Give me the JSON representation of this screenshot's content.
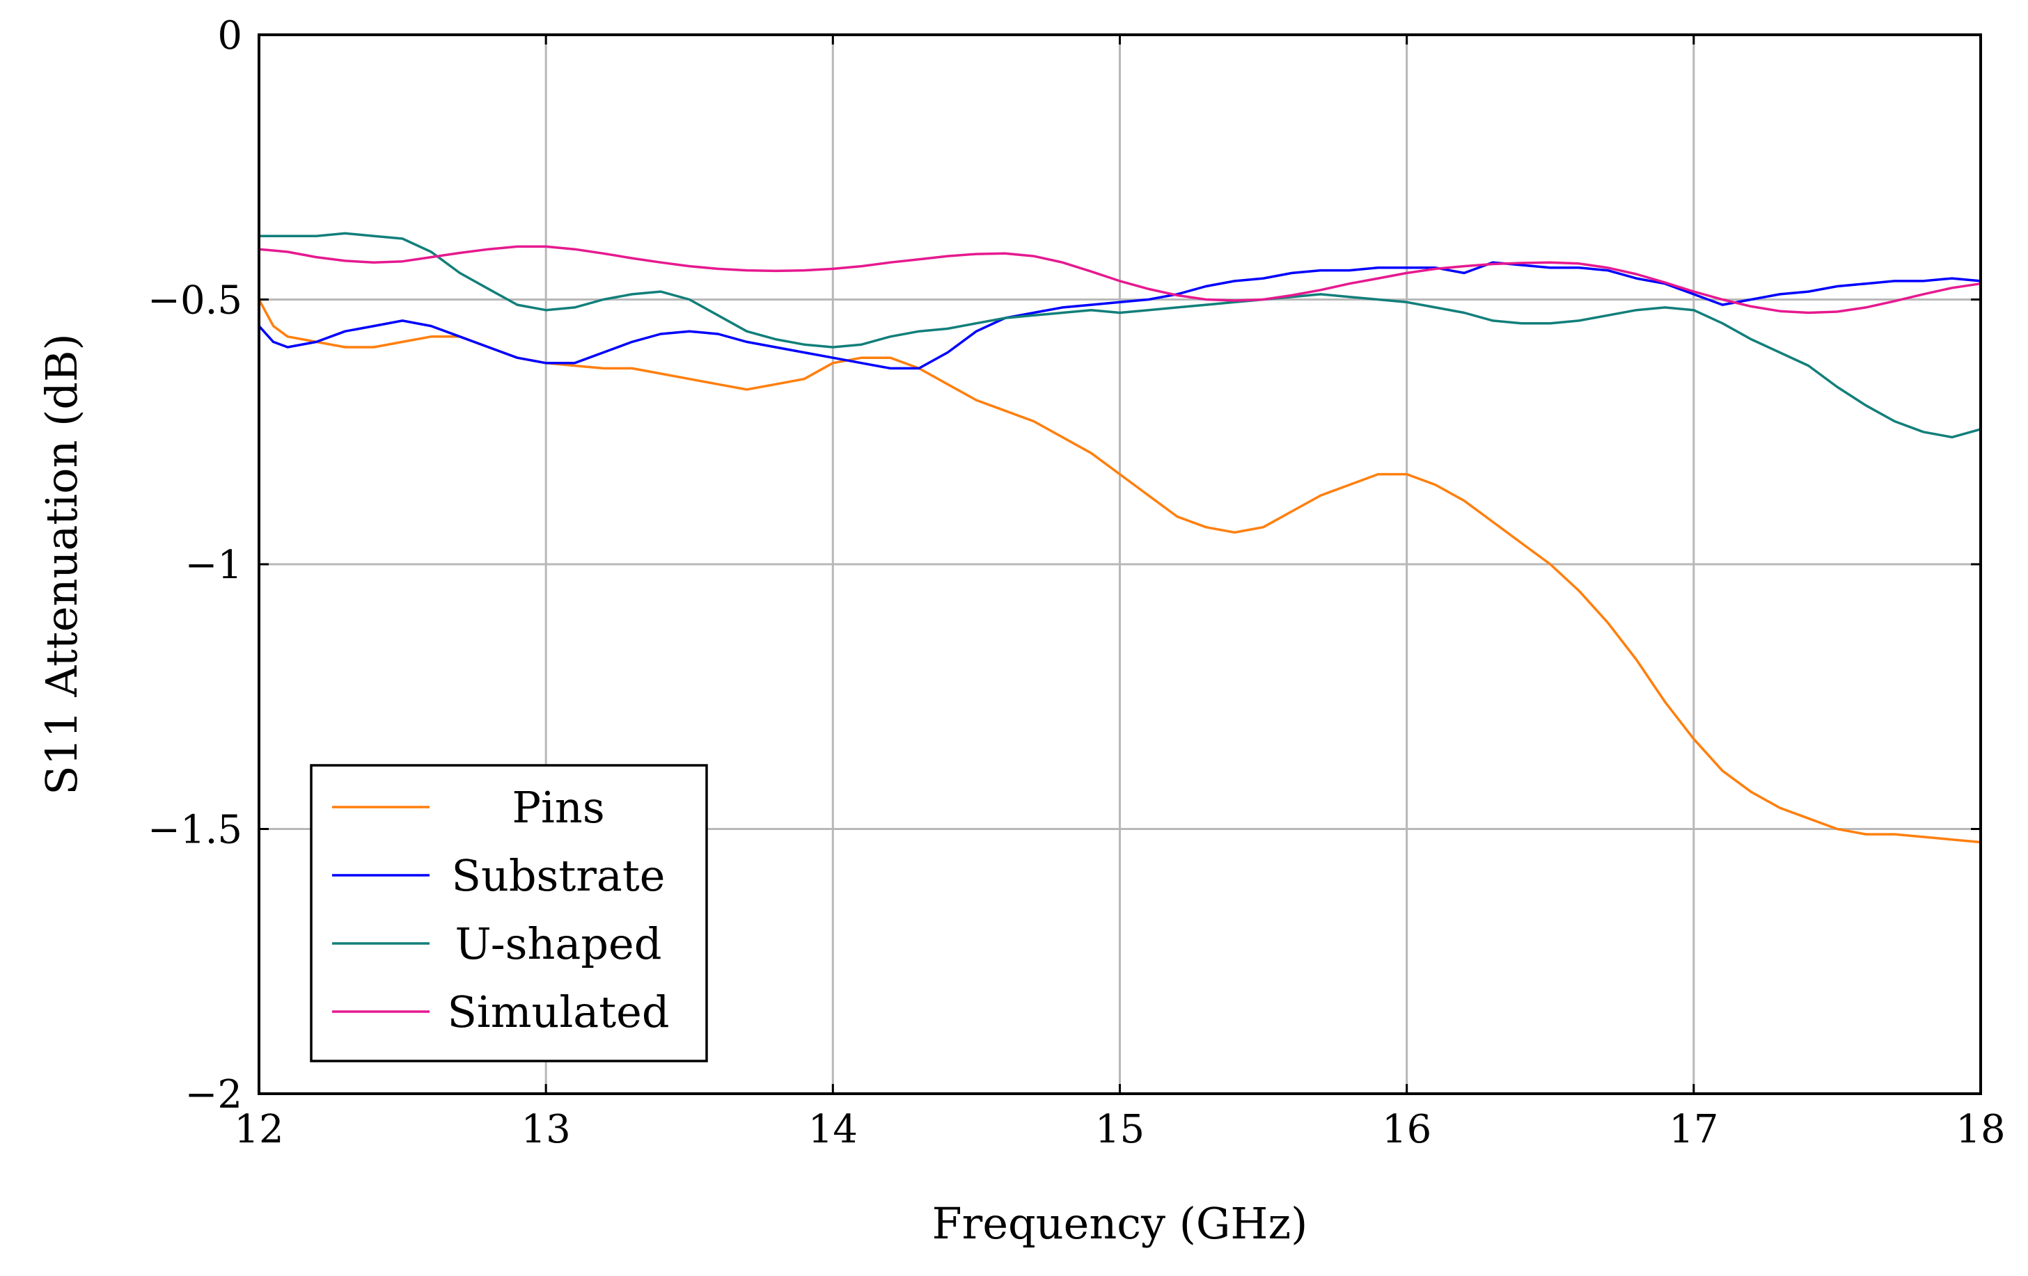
{
  "chart_data": {
    "type": "line",
    "title": "",
    "xlabel": "Frequency (GHz)",
    "ylabel": "S11 Attenuation (dB)",
    "xlim": [
      12,
      18
    ],
    "ylim": [
      -2,
      0
    ],
    "grid": true,
    "legend_position": "bottom-left",
    "x_ticks": [
      12,
      13,
      14,
      15,
      16,
      17,
      18
    ],
    "x_tick_labels": [
      "12",
      "13",
      "14",
      "15",
      "16",
      "17",
      "18"
    ],
    "y_ticks": [
      0,
      -0.5,
      -1,
      -1.5,
      -2
    ],
    "y_tick_labels": [
      "0",
      "−0.5",
      "−1",
      "−1.5",
      "−2"
    ],
    "series": [
      {
        "name": "Pins",
        "color": "#ff7f0e",
        "x": [
          12.0,
          12.05,
          12.1,
          12.2,
          12.3,
          12.4,
          12.5,
          12.6,
          12.7,
          12.8,
          12.9,
          13.0,
          13.1,
          13.2,
          13.3,
          13.4,
          13.5,
          13.6,
          13.7,
          13.8,
          13.9,
          14.0,
          14.1,
          14.2,
          14.3,
          14.4,
          14.5,
          14.6,
          14.7,
          14.8,
          14.9,
          15.0,
          15.1,
          15.2,
          15.3,
          15.4,
          15.5,
          15.6,
          15.7,
          15.8,
          15.9,
          16.0,
          16.1,
          16.2,
          16.3,
          16.4,
          16.5,
          16.6,
          16.7,
          16.8,
          16.9,
          17.0,
          17.1,
          17.2,
          17.3,
          17.4,
          17.5,
          17.6,
          17.7,
          17.8,
          17.9,
          18.0
        ],
        "values": [
          -0.5,
          -0.55,
          -0.57,
          -0.58,
          -0.59,
          -0.59,
          -0.58,
          -0.57,
          -0.57,
          -0.59,
          -0.61,
          -0.62,
          -0.625,
          -0.63,
          -0.63,
          -0.64,
          -0.65,
          -0.66,
          -0.67,
          -0.66,
          -0.65,
          -0.62,
          -0.61,
          -0.61,
          -0.63,
          -0.66,
          -0.69,
          -0.71,
          -0.73,
          -0.76,
          -0.79,
          -0.83,
          -0.87,
          -0.91,
          -0.93,
          -0.94,
          -0.93,
          -0.9,
          -0.87,
          -0.85,
          -0.83,
          -0.83,
          -0.85,
          -0.88,
          -0.92,
          -0.96,
          -1.0,
          -1.05,
          -1.11,
          -1.18,
          -1.26,
          -1.33,
          -1.39,
          -1.43,
          -1.46,
          -1.48,
          -1.5,
          -1.51,
          -1.51,
          -1.515,
          -1.52,
          -1.525
        ]
      },
      {
        "name": "Substrate",
        "color": "#0000ff",
        "x": [
          12.0,
          12.05,
          12.1,
          12.2,
          12.3,
          12.4,
          12.5,
          12.6,
          12.7,
          12.8,
          12.9,
          13.0,
          13.1,
          13.2,
          13.3,
          13.4,
          13.5,
          13.6,
          13.7,
          13.8,
          13.9,
          14.0,
          14.1,
          14.2,
          14.3,
          14.4,
          14.5,
          14.6,
          14.7,
          14.8,
          14.9,
          15.0,
          15.1,
          15.2,
          15.3,
          15.4,
          15.5,
          15.6,
          15.7,
          15.8,
          15.9,
          16.0,
          16.1,
          16.2,
          16.3,
          16.4,
          16.5,
          16.6,
          16.7,
          16.8,
          16.9,
          17.0,
          17.1,
          17.2,
          17.3,
          17.4,
          17.5,
          17.6,
          17.7,
          17.8,
          17.9,
          18.0
        ],
        "values": [
          -0.55,
          -0.58,
          -0.59,
          -0.58,
          -0.56,
          -0.55,
          -0.54,
          -0.55,
          -0.57,
          -0.59,
          -0.61,
          -0.62,
          -0.62,
          -0.6,
          -0.58,
          -0.565,
          -0.56,
          -0.565,
          -0.58,
          -0.59,
          -0.6,
          -0.61,
          -0.62,
          -0.63,
          -0.63,
          -0.6,
          -0.56,
          -0.535,
          -0.525,
          -0.515,
          -0.51,
          -0.505,
          -0.5,
          -0.49,
          -0.475,
          -0.465,
          -0.46,
          -0.45,
          -0.445,
          -0.445,
          -0.44,
          -0.44,
          -0.44,
          -0.45,
          -0.43,
          -0.435,
          -0.44,
          -0.44,
          -0.445,
          -0.46,
          -0.47,
          -0.49,
          -0.51,
          -0.5,
          -0.49,
          -0.485,
          -0.475,
          -0.47,
          -0.465,
          -0.465,
          -0.46,
          -0.465
        ]
      },
      {
        "name": "U-shaped",
        "color": "#127f7a",
        "x": [
          12.0,
          12.05,
          12.1,
          12.2,
          12.3,
          12.4,
          12.5,
          12.6,
          12.7,
          12.8,
          12.9,
          13.0,
          13.1,
          13.2,
          13.3,
          13.4,
          13.5,
          13.6,
          13.7,
          13.8,
          13.9,
          14.0,
          14.1,
          14.2,
          14.3,
          14.4,
          14.5,
          14.6,
          14.7,
          14.8,
          14.9,
          15.0,
          15.1,
          15.2,
          15.3,
          15.4,
          15.5,
          15.6,
          15.7,
          15.8,
          15.9,
          16.0,
          16.1,
          16.2,
          16.3,
          16.4,
          16.5,
          16.6,
          16.7,
          16.8,
          16.9,
          17.0,
          17.1,
          17.2,
          17.3,
          17.4,
          17.5,
          17.6,
          17.7,
          17.8,
          17.9,
          18.0
        ],
        "values": [
          -0.38,
          -0.38,
          -0.38,
          -0.38,
          -0.375,
          -0.38,
          -0.385,
          -0.41,
          -0.45,
          -0.48,
          -0.51,
          -0.52,
          -0.515,
          -0.5,
          -0.49,
          -0.485,
          -0.5,
          -0.53,
          -0.56,
          -0.575,
          -0.585,
          -0.59,
          -0.585,
          -0.57,
          -0.56,
          -0.555,
          -0.545,
          -0.535,
          -0.53,
          -0.525,
          -0.52,
          -0.525,
          -0.52,
          -0.515,
          -0.51,
          -0.505,
          -0.5,
          -0.495,
          -0.49,
          -0.495,
          -0.5,
          -0.505,
          -0.515,
          -0.525,
          -0.54,
          -0.545,
          -0.545,
          -0.54,
          -0.53,
          -0.52,
          -0.515,
          -0.52,
          -0.545,
          -0.575,
          -0.6,
          -0.625,
          -0.665,
          -0.7,
          -0.73,
          -0.75,
          -0.76,
          -0.745
        ]
      },
      {
        "name": "Simulated",
        "color": "#e6198f",
        "x": [
          12.0,
          12.1,
          12.2,
          12.3,
          12.4,
          12.5,
          12.6,
          12.7,
          12.8,
          12.9,
          13.0,
          13.1,
          13.2,
          13.3,
          13.4,
          13.5,
          13.6,
          13.7,
          13.8,
          13.9,
          14.0,
          14.1,
          14.2,
          14.3,
          14.4,
          14.5,
          14.6,
          14.7,
          14.8,
          14.9,
          15.0,
          15.1,
          15.2,
          15.3,
          15.4,
          15.5,
          15.6,
          15.7,
          15.8,
          15.9,
          16.0,
          16.1,
          16.2,
          16.3,
          16.4,
          16.5,
          16.6,
          16.7,
          16.8,
          16.9,
          17.0,
          17.1,
          17.2,
          17.3,
          17.4,
          17.5,
          17.6,
          17.7,
          17.8,
          17.9,
          18.0
        ],
        "values": [
          -0.405,
          -0.41,
          -0.42,
          -0.427,
          -0.43,
          -0.428,
          -0.42,
          -0.412,
          -0.405,
          -0.4,
          -0.4,
          -0.405,
          -0.413,
          -0.422,
          -0.43,
          -0.437,
          -0.442,
          -0.445,
          -0.446,
          -0.445,
          -0.442,
          -0.437,
          -0.43,
          -0.424,
          -0.418,
          -0.414,
          -0.413,
          -0.418,
          -0.43,
          -0.447,
          -0.465,
          -0.48,
          -0.492,
          -0.5,
          -0.502,
          -0.5,
          -0.492,
          -0.482,
          -0.47,
          -0.46,
          -0.45,
          -0.442,
          -0.437,
          -0.433,
          -0.431,
          -0.43,
          -0.432,
          -0.44,
          -0.452,
          -0.468,
          -0.485,
          -0.5,
          -0.513,
          -0.522,
          -0.525,
          -0.523,
          -0.515,
          -0.503,
          -0.49,
          -0.478,
          -0.47
        ]
      }
    ]
  }
}
